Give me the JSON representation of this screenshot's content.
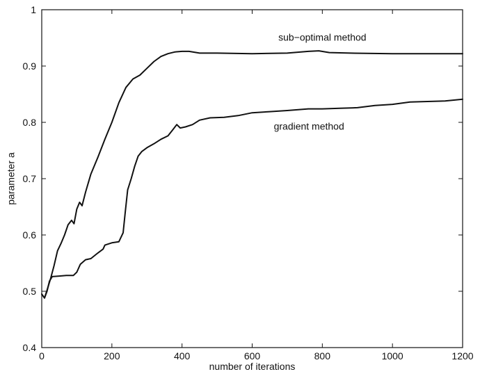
{
  "chart_data": {
    "type": "line",
    "xlabel": "number of iterations",
    "ylabel": "parameter a",
    "xlim": [
      0,
      1200
    ],
    "ylim": [
      0.4,
      1.0
    ],
    "xticks": [
      "0",
      "200",
      "400",
      "600",
      "800",
      "1000",
      "1200"
    ],
    "yticks": [
      "0.4",
      "0.5",
      "0.6",
      "0.7",
      "0.8",
      "0.9",
      "1"
    ],
    "grid": false,
    "legend": "none",
    "annotations": [
      {
        "text": "sub−optimal method",
        "x": 800,
        "y": 0.945
      },
      {
        "text": "gradient method",
        "x": 762,
        "y": 0.787
      }
    ],
    "series": [
      {
        "values": [
          [
            0,
            0.495
          ],
          [
            8,
            0.488
          ],
          [
            15,
            0.502
          ],
          [
            25,
            0.522
          ],
          [
            35,
            0.545
          ],
          [
            45,
            0.572
          ],
          [
            55,
            0.585
          ],
          [
            65,
            0.6
          ],
          [
            75,
            0.618
          ],
          [
            85,
            0.626
          ],
          [
            92,
            0.62
          ],
          [
            100,
            0.646
          ],
          [
            108,
            0.658
          ],
          [
            115,
            0.652
          ],
          [
            125,
            0.676
          ],
          [
            140,
            0.708
          ],
          [
            160,
            0.738
          ],
          [
            180,
            0.77
          ],
          [
            200,
            0.8
          ],
          [
            220,
            0.835
          ],
          [
            240,
            0.862
          ],
          [
            260,
            0.877
          ],
          [
            280,
            0.884
          ],
          [
            300,
            0.896
          ],
          [
            320,
            0.908
          ],
          [
            340,
            0.917
          ],
          [
            360,
            0.922
          ],
          [
            380,
            0.925
          ],
          [
            400,
            0.926
          ],
          [
            420,
            0.926
          ],
          [
            450,
            0.923
          ],
          [
            500,
            0.923
          ],
          [
            600,
            0.922
          ],
          [
            700,
            0.923
          ],
          [
            760,
            0.926
          ],
          [
            790,
            0.927
          ],
          [
            820,
            0.924
          ],
          [
            880,
            0.923
          ],
          [
            1000,
            0.922
          ],
          [
            1100,
            0.922
          ],
          [
            1200,
            0.922
          ]
        ]
      },
      {
        "values": [
          [
            0,
            0.495
          ],
          [
            8,
            0.488
          ],
          [
            15,
            0.5
          ],
          [
            22,
            0.518
          ],
          [
            30,
            0.526
          ],
          [
            50,
            0.527
          ],
          [
            70,
            0.528
          ],
          [
            90,
            0.528
          ],
          [
            100,
            0.534
          ],
          [
            110,
            0.548
          ],
          [
            125,
            0.556
          ],
          [
            140,
            0.558
          ],
          [
            160,
            0.568
          ],
          [
            175,
            0.575
          ],
          [
            180,
            0.582
          ],
          [
            200,
            0.586
          ],
          [
            220,
            0.588
          ],
          [
            232,
            0.604
          ],
          [
            238,
            0.64
          ],
          [
            245,
            0.68
          ],
          [
            255,
            0.7
          ],
          [
            265,
            0.722
          ],
          [
            275,
            0.74
          ],
          [
            285,
            0.748
          ],
          [
            300,
            0.755
          ],
          [
            320,
            0.762
          ],
          [
            340,
            0.77
          ],
          [
            360,
            0.776
          ],
          [
            375,
            0.788
          ],
          [
            385,
            0.796
          ],
          [
            395,
            0.79
          ],
          [
            410,
            0.792
          ],
          [
            430,
            0.796
          ],
          [
            450,
            0.804
          ],
          [
            480,
            0.808
          ],
          [
            520,
            0.809
          ],
          [
            560,
            0.812
          ],
          [
            600,
            0.817
          ],
          [
            650,
            0.819
          ],
          [
            700,
            0.821
          ],
          [
            760,
            0.824
          ],
          [
            800,
            0.824
          ],
          [
            850,
            0.825
          ],
          [
            900,
            0.826
          ],
          [
            950,
            0.83
          ],
          [
            1000,
            0.832
          ],
          [
            1050,
            0.836
          ],
          [
            1100,
            0.837
          ],
          [
            1150,
            0.838
          ],
          [
            1200,
            0.841
          ]
        ]
      }
    ]
  }
}
